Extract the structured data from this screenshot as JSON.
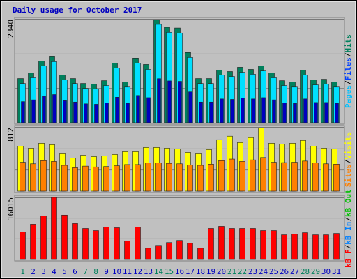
{
  "title": "Daily usage for October 2017",
  "legend_separator": "/",
  "chart_data": [
    {
      "type": "bar",
      "ylim": [
        0,
        2340
      ],
      "yticks": [
        2340
      ],
      "series": [
        {
          "name": "Hits",
          "color": "#00805c",
          "values": [
            1003,
            1130,
            1401,
            1496,
            1083,
            1003,
            892,
            876,
            955,
            1353,
            923,
            1465,
            1321,
            2340,
            2165,
            2149,
            1592,
            1003,
            1003,
            1194,
            1162,
            1258,
            1210,
            1289,
            1130,
            955,
            923,
            1194,
            971,
            987,
            923
          ]
        },
        {
          "name": "Files",
          "color": "#00e0ff",
          "values": [
            891,
            1020,
            1290,
            1385,
            975,
            890,
            780,
            765,
            845,
            1240,
            810,
            1350,
            1210,
            2230,
            2050,
            2035,
            1480,
            890,
            890,
            1080,
            1050,
            1145,
            1100,
            1175,
            1020,
            845,
            810,
            1080,
            860,
            875,
            810
          ]
        },
        {
          "name": "Pages",
          "color": "#0000c0",
          "values": [
            480,
            520,
            600,
            640,
            500,
            470,
            430,
            420,
            450,
            580,
            440,
            620,
            570,
            1000,
            950,
            940,
            700,
            470,
            470,
            540,
            530,
            560,
            540,
            570,
            520,
            450,
            440,
            540,
            460,
            460,
            440
          ]
        }
      ],
      "legend": [
        {
          "name": "Pages",
          "color": "#00c0ff"
        },
        {
          "name": "Files",
          "color": "#0040ff"
        },
        {
          "name": "Hits",
          "color": "#00805c"
        }
      ]
    },
    {
      "type": "bar",
      "ylim": [
        0,
        812
      ],
      "yticks": [
        812
      ],
      "series": [
        {
          "name": "Visits",
          "color": "#ffff00",
          "values": [
            577,
            550,
            613,
            595,
            478,
            424,
            460,
            442,
            451,
            469,
            505,
            505,
            559,
            559,
            550,
            541,
            496,
            478,
            532,
            658,
            703,
            622,
            685,
            812,
            613,
            604,
            613,
            649,
            577,
            550,
            541
          ]
        },
        {
          "name": "Sites",
          "color": "#ff8000",
          "values": [
            370,
            350,
            390,
            380,
            330,
            300,
            320,
            310,
            315,
            325,
            340,
            340,
            360,
            360,
            355,
            350,
            335,
            330,
            345,
            390,
            410,
            380,
            400,
            430,
            370,
            365,
            370,
            385,
            360,
            350,
            345
          ]
        }
      ],
      "legend": [
        {
          "name": "Sites",
          "color": "#ff8000"
        },
        {
          "name": "Visits",
          "color": "#ffff00"
        }
      ]
    },
    {
      "type": "bar",
      "ylim": [
        0,
        16015
      ],
      "yticks": [
        16015
      ],
      "categories": [
        "1",
        "2",
        "3",
        "4",
        "5",
        "6",
        "7",
        "8",
        "9",
        "10",
        "11",
        "12",
        "13",
        "14",
        "15",
        "16",
        "17",
        "18",
        "19",
        "20",
        "21",
        "22",
        "23",
        "24",
        "25",
        "26",
        "27",
        "28",
        "29",
        "30",
        "31"
      ],
      "category_colors": [
        "#00805c",
        "#0000c0",
        "#0000c0",
        "#0000c0",
        "#0000c0",
        "#0000c0",
        "#00805c",
        "#00805c",
        "#0000c0",
        "#0000c0",
        "#0000c0",
        "#0000c0",
        "#0000c0",
        "#00805c",
        "#00805c",
        "#0000c0",
        "#0000c0",
        "#0000c0",
        "#0000c0",
        "#0000c0",
        "#00805c",
        "#00805c",
        "#0000c0",
        "#0000c0",
        "#0000c0",
        "#0000c0",
        "#0000c0",
        "#00805c",
        "#00805c",
        "#0000c0",
        "#0000c0"
      ],
      "series": [
        {
          "name": "kB F",
          "color": "#ff0000",
          "values": [
            7098,
            9100,
            11284,
            16015,
            11466,
            9282,
            8008,
            7462,
            8372,
            8190,
            4732,
            8372,
            2912,
            3640,
            4368,
            4914,
            4186,
            2912,
            8008,
            8554,
            8008,
            8008,
            8008,
            7462,
            7462,
            6370,
            6552,
            6916,
            6370,
            6370,
            6734
          ]
        }
      ],
      "legend": [
        {
          "name": "kB F",
          "color": "#ff0000"
        },
        {
          "name": "kB In",
          "color": "#0080ff"
        },
        {
          "name": "kB Out",
          "color": "#00c000"
        }
      ]
    }
  ]
}
